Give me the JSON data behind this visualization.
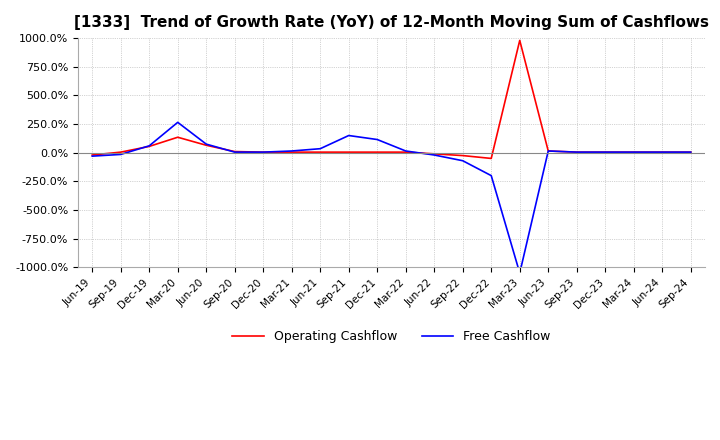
{
  "title": "[1333]  Trend of Growth Rate (YoY) of 12-Month Moving Sum of Cashflows",
  "title_fontsize": 11,
  "ylim": [
    -1000,
    1000
  ],
  "yticks": [
    -1000,
    -750,
    -500,
    -250,
    0,
    250,
    500,
    750,
    1000
  ],
  "ytick_labels": [
    "-1000.0%",
    "-750.0%",
    "-500.0%",
    "-250.0%",
    "0.0%",
    "250.0%",
    "500.0%",
    "750.0%",
    "1000.0%"
  ],
  "x_labels": [
    "Jun-19",
    "Sep-19",
    "Dec-19",
    "Mar-20",
    "Jun-20",
    "Sep-20",
    "Dec-20",
    "Mar-21",
    "Jun-21",
    "Sep-21",
    "Dec-21",
    "Mar-22",
    "Jun-22",
    "Sep-22",
    "Dec-22",
    "Mar-23",
    "Jun-23",
    "Sep-23",
    "Dec-23",
    "Mar-24",
    "Jun-24",
    "Sep-24"
  ],
  "operating_cashflow": [
    -20,
    5,
    55,
    135,
    65,
    10,
    5,
    5,
    5,
    5,
    5,
    5,
    -10,
    -25,
    -50,
    980,
    15,
    5,
    5,
    5,
    5,
    5
  ],
  "free_cashflow": [
    -30,
    -15,
    60,
    265,
    75,
    5,
    5,
    15,
    35,
    150,
    115,
    15,
    -20,
    -70,
    -200,
    -1050,
    15,
    5,
    5,
    5,
    5,
    5
  ],
  "op_color": "#FF0000",
  "free_color": "#0000FF",
  "grid_color": "#AAAAAA",
  "background_color": "#FFFFFF",
  "legend_labels": [
    "Operating Cashflow",
    "Free Cashflow"
  ]
}
